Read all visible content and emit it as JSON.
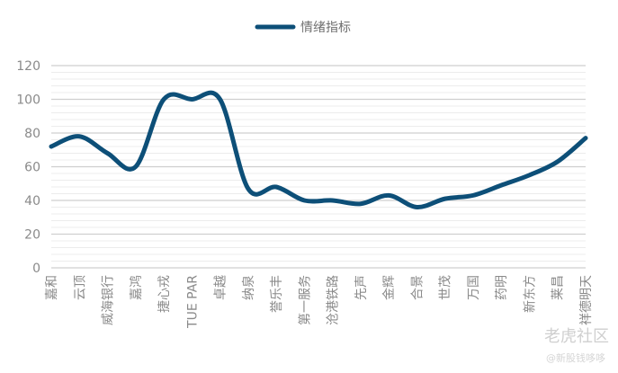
{
  "chart_data": {
    "type": "line",
    "categories": [
      "嘉和",
      "云顶",
      "威海银行",
      "嘉鸿",
      "捷心戎",
      "TUE PAR",
      "卓越",
      "纳泉",
      "誉乐丰",
      "第一服务",
      "沧港铁路",
      "先声",
      "金辉",
      "合景",
      "世茂",
      "万国",
      "药明",
      "新东方",
      "莱昌",
      "祥德明天"
    ],
    "series": [
      {
        "name": "情绪指标",
        "color": "#0d4f78",
        "values": [
          72,
          78,
          68,
          60,
          100,
          100,
          100,
          47,
          48,
          40,
          40,
          38,
          43,
          36,
          41,
          43,
          49,
          55,
          63,
          77
        ]
      }
    ],
    "ylim": [
      0,
      120
    ],
    "yticks": [
      0,
      20,
      40,
      60,
      80,
      100,
      120
    ],
    "minor_grid_step": 4,
    "grid": true,
    "legend": "top-center"
  },
  "watermark": {
    "main": "老虎社区",
    "sub": "@新股钱哆哆"
  }
}
